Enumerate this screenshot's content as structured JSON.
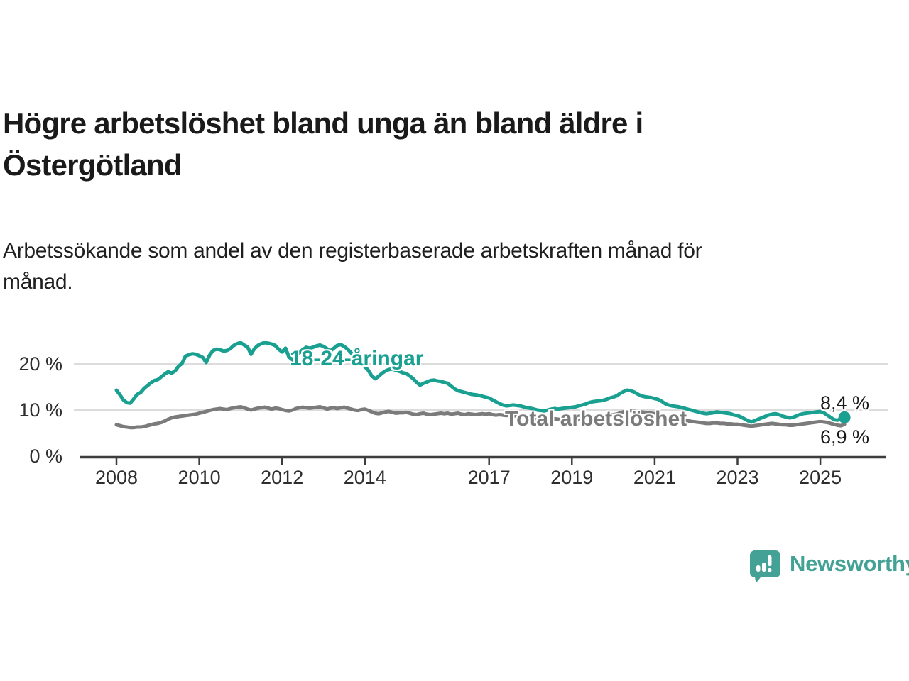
{
  "header": {
    "title_line1": "Högre arbetslöshet bland unga än bland äldre i",
    "title_line2": "Östergötland",
    "subtitle_line1": "Arbetssökande som andel av den registerbaserade arbetskraften månad för",
    "subtitle_line2": "månad."
  },
  "branding": {
    "logo_text": "Newsworthy",
    "logo_color": "#43a195",
    "logo_icon": "speech-bubble-bar-chart"
  },
  "chart_data": {
    "type": "line",
    "title": "Högre arbetslöshet bland unga än bland äldre i Östergötland",
    "subtitle": "Arbetssökande som andel av den registerbaserade arbetskraften månad för månad.",
    "grid": "horizontal-only",
    "legend_position": "inline-labels",
    "x_axis": {
      "tick_years": [
        2008,
        2010,
        2012,
        2014,
        2017,
        2019,
        2021,
        2023,
        2025
      ],
      "tick_labels": [
        "2008",
        "2010",
        "2012",
        "2014",
        "2017",
        "2019",
        "2021",
        "2023",
        "2025"
      ],
      "range_years": [
        2007.1,
        2026.6
      ]
    },
    "y_axis": {
      "tick_labels": [
        "0 %",
        "10 %",
        "20 %"
      ],
      "tick_values": [
        0,
        10,
        20
      ],
      "grid_values": [
        10,
        20
      ],
      "ylim": [
        0,
        26.6
      ]
    },
    "colors": {
      "young": "#1aa091",
      "total": "#7b7b7b",
      "axis": "#3d3d3d",
      "grid": "#dcdcdc",
      "annotation": "#1a1a1a"
    },
    "series": [
      {
        "name": "18-24-åringar",
        "color": "#1aa091",
        "end_label": "8,4 %",
        "end_value": 8.4,
        "end_dot": true,
        "start_year": 2008,
        "points_per_year": 12,
        "values": [
          14.3,
          13.3,
          12.2,
          11.6,
          11.5,
          12.4,
          13.4,
          13.8,
          14.7,
          15.3,
          15.9,
          16.4,
          16.6,
          17.2,
          17.8,
          18.3,
          18.0,
          18.5,
          19.5,
          20.1,
          21.7,
          22.0,
          22.2,
          22.1,
          21.8,
          21.4,
          20.3,
          21.9,
          22.9,
          23.2,
          23.1,
          22.8,
          22.9,
          23.3,
          24.0,
          24.4,
          24.6,
          24.1,
          23.7,
          22.1,
          23.3,
          24.0,
          24.4,
          24.6,
          24.5,
          24.3,
          24.0,
          23.2,
          22.6,
          23.4,
          21.5,
          20.9,
          21.6,
          22.4,
          23.1,
          23.6,
          23.4,
          23.6,
          23.9,
          24.1,
          23.8,
          23.3,
          22.8,
          23.4,
          24.0,
          24.2,
          23.8,
          23.2,
          22.4,
          21.6,
          20.8,
          20.1,
          19.4,
          18.6,
          17.4,
          16.8,
          17.3,
          18.0,
          18.5,
          18.8,
          18.9,
          18.6,
          18.4,
          18.1,
          17.9,
          17.4,
          16.8,
          16.0,
          15.4,
          15.8,
          16.1,
          16.4,
          16.5,
          16.3,
          16.2,
          16.0,
          15.8,
          15.2,
          14.6,
          14.2,
          14.0,
          13.8,
          13.6,
          13.4,
          13.3,
          13.2,
          13.0,
          12.8,
          12.6,
          12.2,
          11.8,
          11.4,
          11.1,
          10.9,
          11.0,
          11.1,
          11.0,
          10.9,
          10.7,
          10.5,
          10.4,
          10.2,
          10.0,
          9.9,
          9.8,
          10.0,
          10.2,
          10.3,
          10.2,
          10.3,
          10.4,
          10.5,
          10.6,
          10.7,
          10.9,
          11.1,
          11.3,
          11.6,
          11.8,
          11.9,
          12.0,
          12.1,
          12.3,
          12.6,
          12.8,
          13.1,
          13.6,
          14.0,
          14.3,
          14.2,
          13.9,
          13.5,
          13.1,
          12.9,
          12.8,
          12.7,
          12.5,
          12.3,
          11.9,
          11.4,
          11.1,
          10.9,
          10.8,
          10.7,
          10.5,
          10.3,
          10.1,
          9.9,
          9.7,
          9.5,
          9.3,
          9.2,
          9.3,
          9.4,
          9.6,
          9.5,
          9.4,
          9.3,
          9.2,
          8.9,
          8.8,
          8.5,
          8.1,
          7.7,
          7.4,
          7.7,
          8.0,
          8.3,
          8.6,
          8.9,
          9.1,
          9.2,
          9.0,
          8.7,
          8.5,
          8.3,
          8.4,
          8.7,
          9.0,
          9.2,
          9.3,
          9.4,
          9.5,
          9.6,
          9.7,
          9.4,
          8.9,
          8.4,
          7.9,
          7.8,
          8.1,
          8.4
        ]
      },
      {
        "name": "Total arbetslöshet",
        "color": "#7b7b7b",
        "end_label": "6,9 %",
        "end_value": 6.9,
        "end_dot": false,
        "start_year": 2008,
        "points_per_year": 12,
        "values": [
          6.8,
          6.6,
          6.4,
          6.3,
          6.2,
          6.2,
          6.3,
          6.3,
          6.4,
          6.6,
          6.8,
          7.0,
          7.1,
          7.3,
          7.6,
          8.0,
          8.3,
          8.5,
          8.6,
          8.7,
          8.8,
          8.9,
          9.0,
          9.1,
          9.3,
          9.5,
          9.7,
          9.9,
          10.1,
          10.2,
          10.3,
          10.2,
          10.1,
          10.3,
          10.5,
          10.6,
          10.7,
          10.5,
          10.2,
          10.0,
          10.2,
          10.4,
          10.5,
          10.6,
          10.4,
          10.2,
          10.4,
          10.3,
          10.1,
          9.9,
          9.8,
          10.0,
          10.3,
          10.5,
          10.6,
          10.5,
          10.4,
          10.5,
          10.6,
          10.7,
          10.5,
          10.2,
          10.4,
          10.5,
          10.3,
          10.5,
          10.6,
          10.4,
          10.2,
          10.0,
          9.9,
          10.1,
          10.2,
          9.9,
          9.6,
          9.3,
          9.2,
          9.4,
          9.6,
          9.7,
          9.5,
          9.3,
          9.4,
          9.4,
          9.5,
          9.3,
          9.1,
          9.0,
          9.2,
          9.3,
          9.1,
          9.0,
          9.1,
          9.2,
          9.3,
          9.2,
          9.3,
          9.1,
          9.2,
          9.3,
          9.1,
          9.0,
          9.2,
          9.1,
          9.0,
          9.1,
          9.2,
          9.1,
          9.2,
          9.0,
          8.9,
          9.0,
          8.9,
          8.8,
          8.9,
          8.8,
          8.7,
          8.6,
          8.5,
          8.4,
          8.3,
          8.2,
          8.1,
          8.0,
          8.0,
          8.1,
          8.2,
          8.1,
          8.0,
          7.9,
          7.9,
          8.0,
          8.0,
          8.0,
          8.1,
          8.2,
          8.3,
          8.4,
          8.5,
          8.5,
          8.6,
          8.7,
          8.8,
          9.0,
          9.0,
          9.1,
          9.4,
          9.6,
          9.8,
          9.9,
          9.8,
          9.7,
          9.6,
          9.5,
          9.4,
          9.3,
          9.2,
          9.0,
          8.8,
          8.6,
          8.4,
          8.2,
          8.1,
          8.0,
          7.8,
          7.7,
          7.6,
          7.5,
          7.4,
          7.3,
          7.2,
          7.1,
          7.1,
          7.2,
          7.2,
          7.1,
          7.1,
          7.0,
          7.0,
          6.9,
          6.9,
          6.8,
          6.7,
          6.6,
          6.5,
          6.6,
          6.7,
          6.8,
          6.9,
          7.0,
          7.1,
          7.0,
          6.9,
          6.8,
          6.8,
          6.7,
          6.7,
          6.8,
          6.9,
          7.0,
          7.1,
          7.2,
          7.3,
          7.4,
          7.5,
          7.4,
          7.3,
          7.1,
          6.9,
          6.7,
          6.6,
          6.9
        ]
      }
    ]
  }
}
